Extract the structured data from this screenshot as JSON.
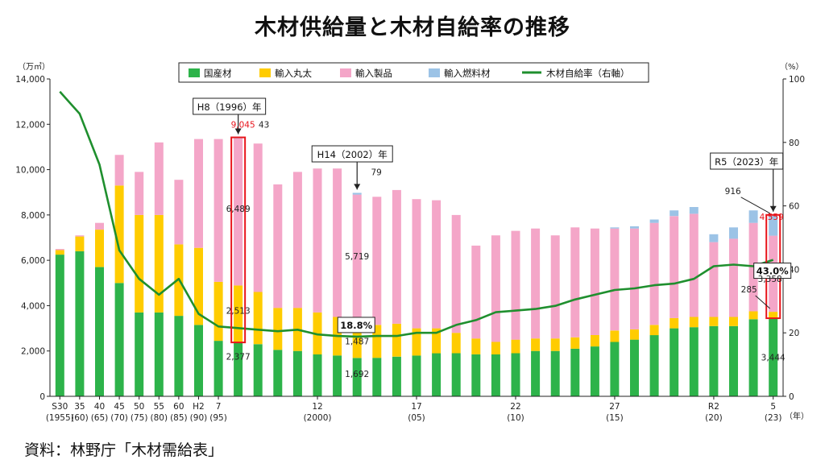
{
  "title": "木材供給量と木材自給率の推移",
  "source": "資料：林野庁「木材需給表」",
  "axes": {
    "left_unit": "（万㎥）",
    "right_unit": "（%）",
    "x_unit": "（年）",
    "left_ticks": [
      "0",
      "2,000",
      "4,000",
      "6,000",
      "8,000",
      "10,000",
      "12,000",
      "14,000"
    ],
    "right_ticks": [
      "0",
      "20",
      "40",
      "60",
      "80",
      "100"
    ]
  },
  "legend": {
    "domestic": "国産材",
    "imported_log": "輸入丸太",
    "imported_product": "輸入製品",
    "imported_fuel": "輸入燃料材",
    "rate": "木材自給率（右軸）"
  },
  "colors": {
    "domestic": "#2db34a",
    "imported_log": "#ffcc00",
    "imported_product": "#f4a6c8",
    "imported_fuel": "#9cc3e6",
    "rate": "#1f8f2e",
    "highlight": "#e8141b"
  },
  "x_tick_labels": [
    {
      "i": 0,
      "top": "S30",
      "bottom": "(1955)"
    },
    {
      "i": 1,
      "top": "35",
      "bottom": "(60)"
    },
    {
      "i": 2,
      "top": "40",
      "bottom": "(65)"
    },
    {
      "i": 3,
      "top": "45",
      "bottom": "(70)"
    },
    {
      "i": 4,
      "top": "50",
      "bottom": "(75)"
    },
    {
      "i": 5,
      "top": "55",
      "bottom": "(80)"
    },
    {
      "i": 6,
      "top": "60",
      "bottom": "(85)"
    },
    {
      "i": 7,
      "top": "H2",
      "bottom": "(90)"
    },
    {
      "i": 8,
      "top": "7",
      "bottom": "(95)"
    },
    {
      "i": 13,
      "top": "12",
      "bottom": "(2000)"
    },
    {
      "i": 18,
      "top": "17",
      "bottom": "(05)"
    },
    {
      "i": 23,
      "top": "22",
      "bottom": "(10)"
    },
    {
      "i": 28,
      "top": "27",
      "bottom": "(15)"
    },
    {
      "i": 33,
      "top": "R2",
      "bottom": "(20)"
    },
    {
      "i": 36,
      "top": "5",
      "bottom": "(23)"
    }
  ],
  "callouts": [
    {
      "text": "H8（1996）年",
      "i": 9
    },
    {
      "text": "H14（2002）年",
      "i": 15
    },
    {
      "text": "R5（2023）年",
      "i": 36
    }
  ],
  "rate_labels": [
    {
      "text": "18.8%",
      "i": 15
    },
    {
      "text": "43.0%",
      "i": 36
    }
  ],
  "data_labels": [
    {
      "text": "9,045",
      "i": 9,
      "red": true
    },
    {
      "text": "43",
      "i": 9,
      "red": false
    },
    {
      "text": "6,489",
      "i": 9,
      "red": false
    },
    {
      "text": "2,513",
      "i": 9,
      "red": false
    },
    {
      "text": "2,377",
      "i": 9,
      "red": false
    },
    {
      "text": "79",
      "i": 15,
      "red": false
    },
    {
      "text": "5,719",
      "i": 15,
      "red": false
    },
    {
      "text": "1,487",
      "i": 15,
      "red": false
    },
    {
      "text": "1,692",
      "i": 15,
      "red": false
    },
    {
      "text": "916",
      "i": 36,
      "red": false
    },
    {
      "text": "4,559",
      "i": 36,
      "red": true
    },
    {
      "text": "3,358",
      "i": 36,
      "red": false
    },
    {
      "text": "285",
      "i": 36,
      "red": false
    },
    {
      "text": "3,444",
      "i": 36,
      "red": false
    }
  ],
  "chart_data": {
    "type": "bar",
    "stacked": true,
    "title": "木材供給量と木材自給率の推移",
    "xlabel": "（年）",
    "ylabel": "（万㎥）",
    "y2label": "（%）",
    "ylim": [
      0,
      14000
    ],
    "y2lim": [
      0,
      100
    ],
    "legend_position": "top",
    "categories": [
      "1955",
      "1960",
      "1965",
      "1970",
      "1975",
      "1980",
      "1985",
      "1990",
      "1995",
      "1996",
      "1997",
      "1998",
      "1999",
      "2000",
      "2001",
      "2002",
      "2003",
      "2004",
      "2005",
      "2006",
      "2007",
      "2008",
      "2009",
      "2010",
      "2011",
      "2012",
      "2013",
      "2014",
      "2015",
      "2016",
      "2017",
      "2018",
      "2019",
      "2020",
      "2021",
      "2022",
      "2023"
    ],
    "series": [
      {
        "name": "国産材",
        "key": "domestic",
        "values": [
          6250,
          6400,
          5700,
          5000,
          3700,
          3700,
          3550,
          3150,
          2450,
          2377,
          2300,
          2050,
          2000,
          1850,
          1800,
          1692,
          1700,
          1750,
          1800,
          1900,
          1900,
          1850,
          1850,
          1900,
          2000,
          2000,
          2100,
          2200,
          2400,
          2500,
          2700,
          3000,
          3050,
          3100,
          3100,
          3400,
          3444
        ]
      },
      {
        "name": "輸入丸太",
        "key": "imported_log",
        "values": [
          200,
          650,
          1650,
          4300,
          4300,
          4300,
          3150,
          3400,
          2600,
          2513,
          2300,
          1850,
          1900,
          1850,
          1700,
          1487,
          1450,
          1450,
          1200,
          1100,
          900,
          700,
          550,
          600,
          550,
          550,
          500,
          500,
          500,
          450,
          450,
          450,
          450,
          400,
          400,
          350,
          285
        ]
      },
      {
        "name": "輸入製品",
        "key": "imported_product",
        "values": [
          50,
          50,
          300,
          1350,
          1900,
          3200,
          2850,
          4800,
          6300,
          6489,
          6550,
          5450,
          6000,
          6350,
          6550,
          5719,
          5650,
          5900,
          5700,
          5650,
          5200,
          4100,
          4700,
          4800,
          4850,
          4550,
          4850,
          4700,
          4500,
          4450,
          4500,
          4500,
          4550,
          3300,
          3450,
          3900,
          3358
        ]
      },
      {
        "name": "輸入燃料材",
        "key": "imported_fuel",
        "values": [
          0,
          0,
          0,
          0,
          0,
          0,
          0,
          0,
          0,
          43,
          0,
          0,
          0,
          0,
          0,
          79,
          0,
          0,
          0,
          0,
          0,
          0,
          0,
          0,
          0,
          0,
          0,
          0,
          50,
          100,
          150,
          250,
          300,
          350,
          500,
          550,
          916
        ]
      }
    ],
    "totals": [
      6500,
      7100,
      7650,
      10650,
      9900,
      11200,
      9550,
      11350,
      11350,
      11422,
      11150,
      9350,
      9900,
      10050,
      10050,
      8978,
      8800,
      9100,
      8700,
      8650,
      8000,
      6650,
      7100,
      7300,
      7400,
      7100,
      7450,
      7400,
      7450,
      7500,
      7800,
      8200,
      8350,
      7150,
      7450,
      8200,
      8003
    ],
    "rate_series": {
      "name": "木材自給率（右軸）",
      "axis": "right",
      "values": [
        96,
        89,
        73,
        46,
        37,
        32,
        37,
        26,
        22,
        21.5,
        21,
        20.5,
        21,
        19.5,
        19,
        18.8,
        19,
        19,
        20,
        20,
        22.5,
        24,
        26.5,
        27,
        27.5,
        28.5,
        30.5,
        32,
        33.5,
        34,
        35,
        35.5,
        37,
        41,
        41.5,
        41,
        43.0
      ]
    }
  }
}
